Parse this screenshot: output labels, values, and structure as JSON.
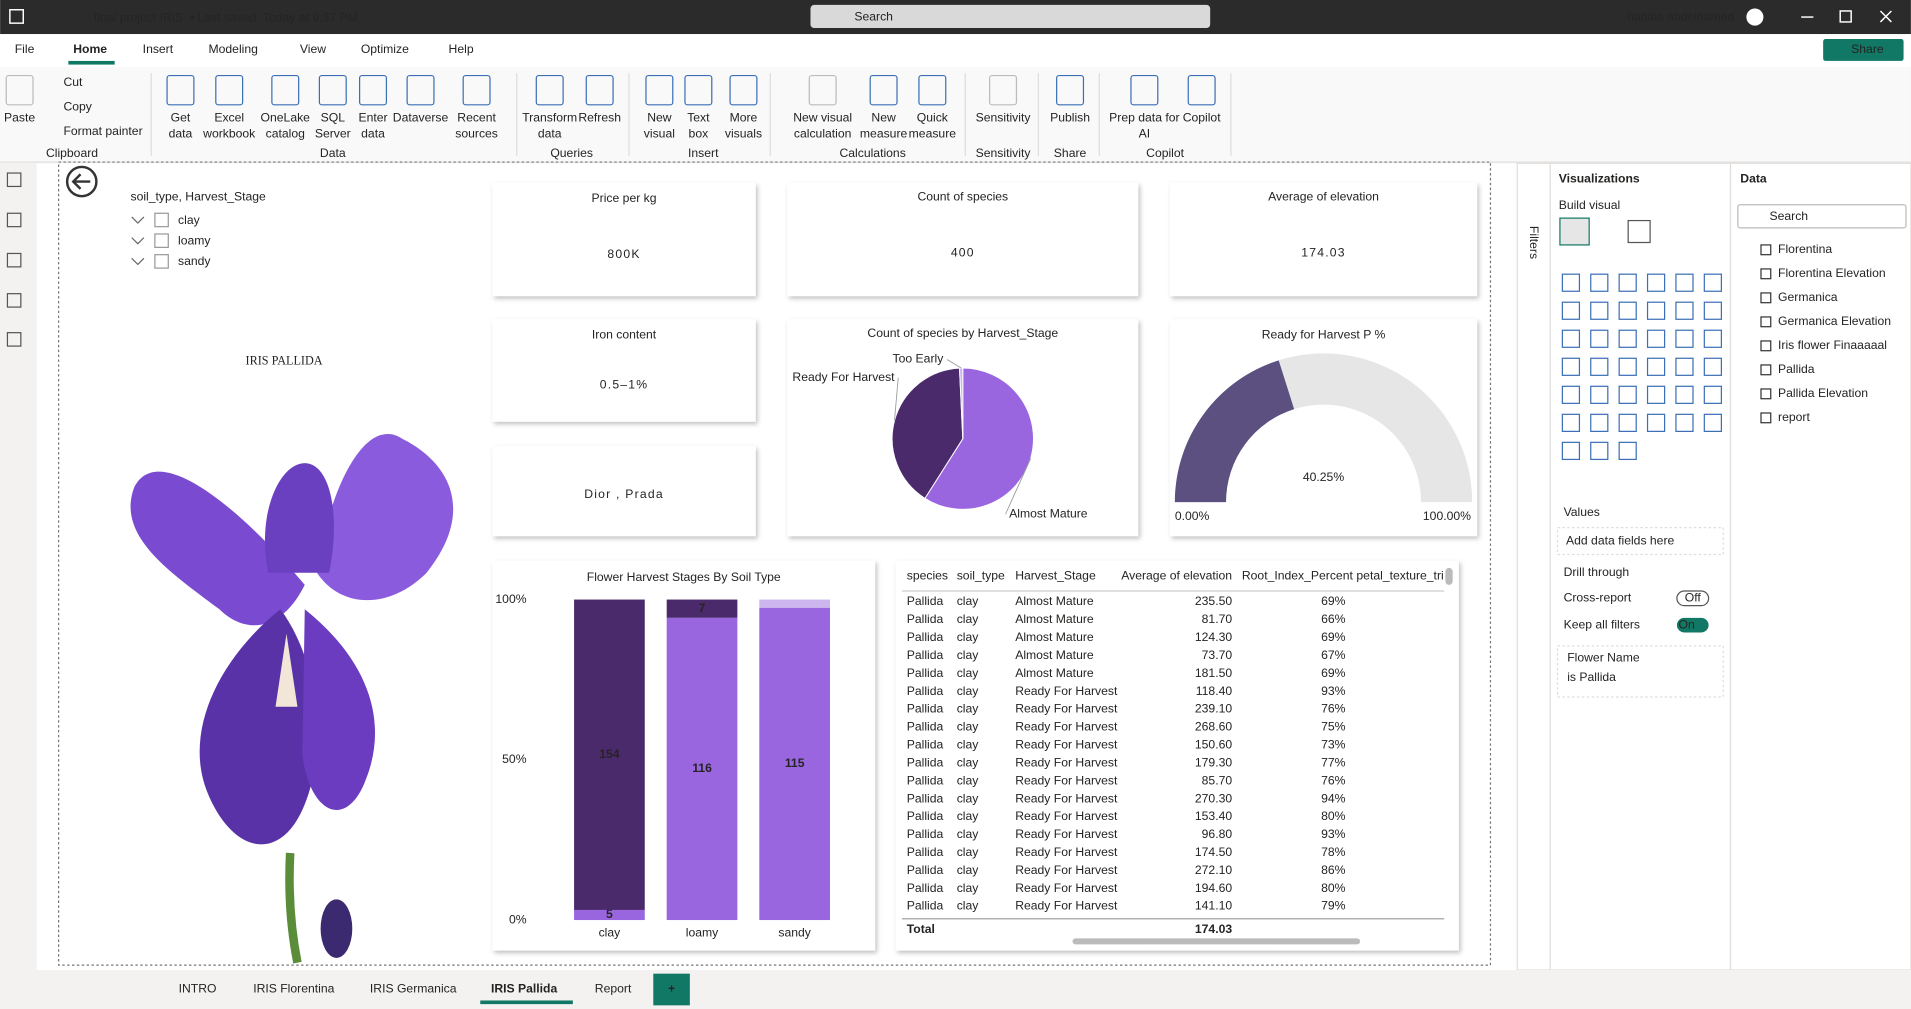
{
  "title_bar": {
    "file": "final project IRIS",
    "separator": "•",
    "saved": "Last saved: Today at 9:37 PM",
    "search": "Search",
    "user": "habiba abdelhamed"
  },
  "menu": {
    "tabs": [
      "File",
      "Home",
      "Insert",
      "Modeling",
      "View",
      "Optimize",
      "Help"
    ],
    "share": "Share"
  },
  "ribbon": {
    "groups": [
      {
        "label": "Clipboard",
        "items": [
          [
            "Paste"
          ],
          [
            "Cut"
          ],
          [
            "Copy"
          ],
          [
            "Format painter"
          ]
        ]
      },
      {
        "label": "Data",
        "items": [
          [
            "Get",
            "data"
          ],
          [
            "Excel",
            "workbook"
          ],
          [
            "OneLake",
            "catalog"
          ],
          [
            "SQL",
            "Server"
          ],
          [
            "Enter",
            "data"
          ],
          [
            "Dataverse"
          ],
          [
            "Recent",
            "sources"
          ]
        ]
      },
      {
        "label": "Queries",
        "items": [
          [
            "Transform",
            "data"
          ],
          [
            "Refresh"
          ]
        ]
      },
      {
        "label": "Insert",
        "items": [
          [
            "New",
            "visual"
          ],
          [
            "Text",
            "box"
          ],
          [
            "More",
            "visuals"
          ]
        ]
      },
      {
        "label": "Calculations",
        "items": [
          [
            "New visual",
            "calculation"
          ],
          [
            "New",
            "measure"
          ],
          [
            "Quick",
            "measure"
          ]
        ]
      },
      {
        "label": "Sensitivity",
        "items": [
          [
            "Sensitivity"
          ]
        ]
      },
      {
        "label": "Share",
        "items": [
          [
            "Publish"
          ]
        ]
      },
      {
        "label": "Copilot",
        "items": [
          [
            "Prep data for",
            "AI"
          ],
          [
            "Copilot"
          ]
        ]
      }
    ]
  },
  "slicer": {
    "title": "soil_type, Harvest_Stage",
    "options": [
      "clay",
      "loamy",
      "sandy"
    ]
  },
  "page_title": "IRIS PALLIDA",
  "cards": [
    {
      "title": "Price per kg",
      "value": "800K"
    },
    {
      "title": "Count of species",
      "value": "400"
    },
    {
      "title": "Average of elevation",
      "value": "174.03"
    },
    {
      "title": "Iron content",
      "value": "0.5–1%"
    },
    {
      "value": "Dior , Prada"
    }
  ],
  "pie": {
    "type": "pie",
    "title": "Count of species by Harvest_Stage",
    "categories": [
      "Almost Mature",
      "Ready For Harvest",
      "Too Early"
    ],
    "values": [
      236,
      161,
      3
    ],
    "colors": [
      "#9a66e0",
      "#4b2a6b",
      "#cdb6ee"
    ]
  },
  "gauge": {
    "type": "gauge",
    "title": "Ready for Harvest P %",
    "value": 40.25,
    "value_label": "40.25%",
    "min": {
      "value": 0,
      "label": "0.00%"
    },
    "max": {
      "value": 100,
      "label": "100.00%"
    },
    "color": "#5b5080"
  },
  "stacked_bar": {
    "type": "bar",
    "stacked": "percent",
    "title": "Flower Harvest Stages By Soil Type",
    "categories": [
      "clay",
      "loamy",
      "sandy"
    ],
    "series": [
      {
        "color": "#9a66e0",
        "values": [
          5,
          116,
          115
        ]
      },
      {
        "color": "#4b2a6b",
        "values": [
          154,
          7,
          0
        ]
      },
      {
        "color": "#cdb6ee",
        "values": [
          0,
          0,
          3
        ]
      }
    ],
    "ylim": [
      0,
      100
    ],
    "yticks": [
      {
        "value": 0,
        "label": "0%"
      },
      {
        "value": 50,
        "label": "50%"
      },
      {
        "value": 100,
        "label": "100%"
      }
    ]
  },
  "table": {
    "columns": [
      "species",
      "soil_type",
      "Harvest_Stage",
      "Average of elevation",
      "Root_Index_Percent",
      "petal_texture_tri"
    ],
    "rows": [
      [
        "Pallida",
        "clay",
        "Almost Mature",
        "235.50",
        "69%"
      ],
      [
        "Pallida",
        "clay",
        "Almost Mature",
        "81.70",
        "66%"
      ],
      [
        "Pallida",
        "clay",
        "Almost Mature",
        "124.30",
        "69%"
      ],
      [
        "Pallida",
        "clay",
        "Almost Mature",
        "73.70",
        "67%"
      ],
      [
        "Pallida",
        "clay",
        "Almost Mature",
        "181.50",
        "69%"
      ],
      [
        "Pallida",
        "clay",
        "Ready For Harvest",
        "118.40",
        "93%"
      ],
      [
        "Pallida",
        "clay",
        "Ready For Harvest",
        "239.10",
        "76%"
      ],
      [
        "Pallida",
        "clay",
        "Ready For Harvest",
        "268.60",
        "75%"
      ],
      [
        "Pallida",
        "clay",
        "Ready For Harvest",
        "150.60",
        "73%"
      ],
      [
        "Pallida",
        "clay",
        "Ready For Harvest",
        "179.30",
        "77%"
      ],
      [
        "Pallida",
        "clay",
        "Ready For Harvest",
        "85.70",
        "76%"
      ],
      [
        "Pallida",
        "clay",
        "Ready For Harvest",
        "270.30",
        "94%"
      ],
      [
        "Pallida",
        "clay",
        "Ready For Harvest",
        "153.40",
        "80%"
      ],
      [
        "Pallida",
        "clay",
        "Ready For Harvest",
        "96.80",
        "93%"
      ],
      [
        "Pallida",
        "clay",
        "Ready For Harvest",
        "174.50",
        "78%"
      ],
      [
        "Pallida",
        "clay",
        "Ready For Harvest",
        "272.10",
        "86%"
      ],
      [
        "Pallida",
        "clay",
        "Ready For Harvest",
        "194.60",
        "80%"
      ],
      [
        "Pallida",
        "clay",
        "Ready For Harvest",
        "141.10",
        "79%"
      ]
    ],
    "total": {
      "label": "Total",
      "elevation": "174.03"
    }
  },
  "filters_pane": {
    "title": "Filters"
  },
  "visualizations_pane": {
    "title": "Visualizations",
    "build": "Build visual",
    "values": "Values",
    "placeholder": "Add data fields here",
    "drill": "Drill through",
    "cross_report": "Cross-report",
    "cross_state": "Off",
    "keep_filters": "Keep all filters",
    "keep_state": "On",
    "filter_field": "Flower Name",
    "filter_value": "is Pallida"
  },
  "data_pane": {
    "title": "Data",
    "search": "Search",
    "tables": [
      "Florentina",
      "Florentina Elevation",
      "Germanica",
      "Germanica Elevation",
      "Iris flower Finaaaaal",
      "Pallida",
      "Pallida Elevation",
      "report"
    ]
  },
  "page_tabs": {
    "tabs": [
      "INTRO",
      "IRIS Florentina",
      "IRIS Germanica",
      "IRIS Pallida",
      "Report"
    ],
    "add": "+"
  }
}
